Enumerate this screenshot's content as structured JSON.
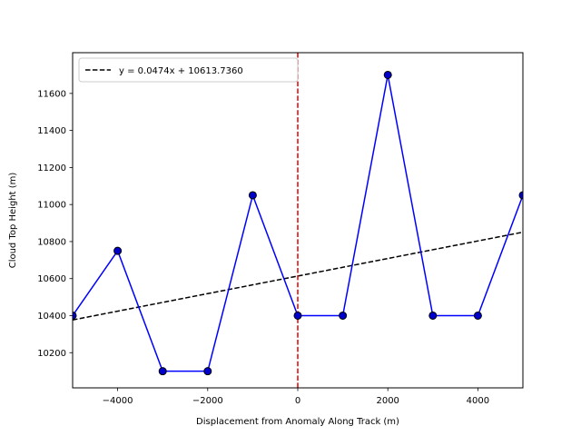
{
  "chart_data": {
    "type": "line",
    "title": "",
    "xlabel": "Displacement from Anomaly Along Track (m)",
    "ylabel": "Cloud Top Height (m)",
    "xlim": [
      -5000,
      5000
    ],
    "ylim": [
      10010,
      11820
    ],
    "xticks": [
      -4000,
      -2000,
      0,
      2000,
      4000
    ],
    "xtick_labels": [
      "−4000",
      "−2000",
      "0",
      "2000",
      "4000"
    ],
    "yticks": [
      10200,
      10400,
      10600,
      10800,
      11000,
      11200,
      11400,
      11600
    ],
    "ytick_labels": [
      "10200",
      "10400",
      "10600",
      "10800",
      "11000",
      "11200",
      "11400",
      "11600"
    ],
    "grid": false,
    "series": [
      {
        "x": [
          -5000,
          -4000,
          -3000,
          -2000,
          -1000,
          0,
          1000,
          2000,
          3000,
          4000,
          5000
        ],
        "y": [
          10400,
          10750,
          10100,
          10100,
          11050,
          10400,
          10400,
          11700,
          10400,
          10400,
          11050
        ],
        "color": "#0000ff",
        "marker_color": "#0000cc",
        "style": "solid-with-markers"
      },
      {
        "name": "y = 0.0474x + 10613.7360",
        "slope": 0.0474,
        "intercept": 10613.736,
        "color": "#000000",
        "style": "dashed"
      }
    ],
    "vline": {
      "x": 0,
      "color": "#dd0000",
      "style": "dashed"
    },
    "legend": {
      "position": "top-left",
      "entries": [
        "y = 0.0474x + 10613.7360"
      ]
    }
  }
}
